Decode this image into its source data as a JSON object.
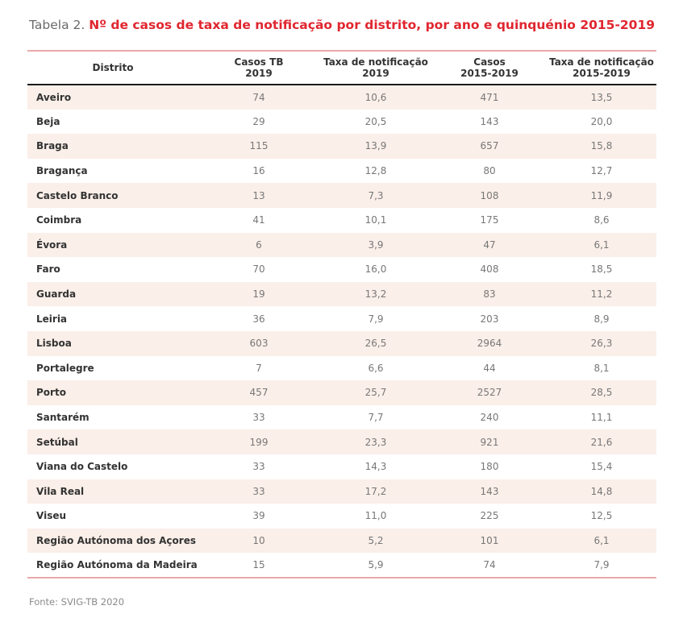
{
  "caption": {
    "prefix": "Tabela 2. ",
    "title": "Nº de casos de taxa de notificação por distrito, por ano e quinquénio 2015-2019"
  },
  "table": {
    "headers": [
      [
        "Distrito"
      ],
      [
        "Casos TB",
        "2019"
      ],
      [
        "Taxa de notificação",
        "2019"
      ],
      [
        "Casos",
        "2015-2019"
      ],
      [
        "Taxa de notificação",
        "2015-2019"
      ]
    ],
    "rows": [
      [
        "Aveiro",
        "74",
        "10,6",
        "471",
        "13,5"
      ],
      [
        "Beja",
        "29",
        "20,5",
        "143",
        "20,0"
      ],
      [
        "Braga",
        "115",
        "13,9",
        "657",
        "15,8"
      ],
      [
        "Bragança",
        "16",
        "12,8",
        "80",
        "12,7"
      ],
      [
        "Castelo Branco",
        "13",
        "7,3",
        "108",
        "11,9"
      ],
      [
        "Coimbra",
        "41",
        "10,1",
        "175",
        "8,6"
      ],
      [
        "Évora",
        "6",
        "3,9",
        "47",
        "6,1"
      ],
      [
        "Faro",
        "70",
        "16,0",
        "408",
        "18,5"
      ],
      [
        "Guarda",
        "19",
        "13,2",
        "83",
        "11,2"
      ],
      [
        "Leiria",
        "36",
        "7,9",
        "203",
        "8,9"
      ],
      [
        "Lisboa",
        "603",
        "26,5",
        "2964",
        "26,3"
      ],
      [
        "Portalegre",
        "7",
        "6,6",
        "44",
        "8,1"
      ],
      [
        "Porto",
        "457",
        "25,7",
        "2527",
        "28,5"
      ],
      [
        "Santarém",
        "33",
        "7,7",
        "240",
        "11,1"
      ],
      [
        "Setúbal",
        "199",
        "23,3",
        "921",
        "21,6"
      ],
      [
        "Viana do Castelo",
        "33",
        "14,3",
        "180",
        "15,4"
      ],
      [
        "Vila Real",
        "33",
        "17,2",
        "143",
        "14,8"
      ],
      [
        "Viseu",
        "39",
        "11,0",
        "225",
        "12,5"
      ],
      [
        "Região Autónoma dos Açores",
        "10",
        "5,2",
        "101",
        "6,1"
      ],
      [
        "Região Autónoma da Madeira",
        "15",
        "5,9",
        "74",
        "7,9"
      ]
    ]
  },
  "source": "Fonte: SVIG-TB 2020",
  "colors": {
    "title_red": "#e0262f",
    "row_band": "#fbefe9",
    "rule_pink": "#e8a9a9"
  }
}
